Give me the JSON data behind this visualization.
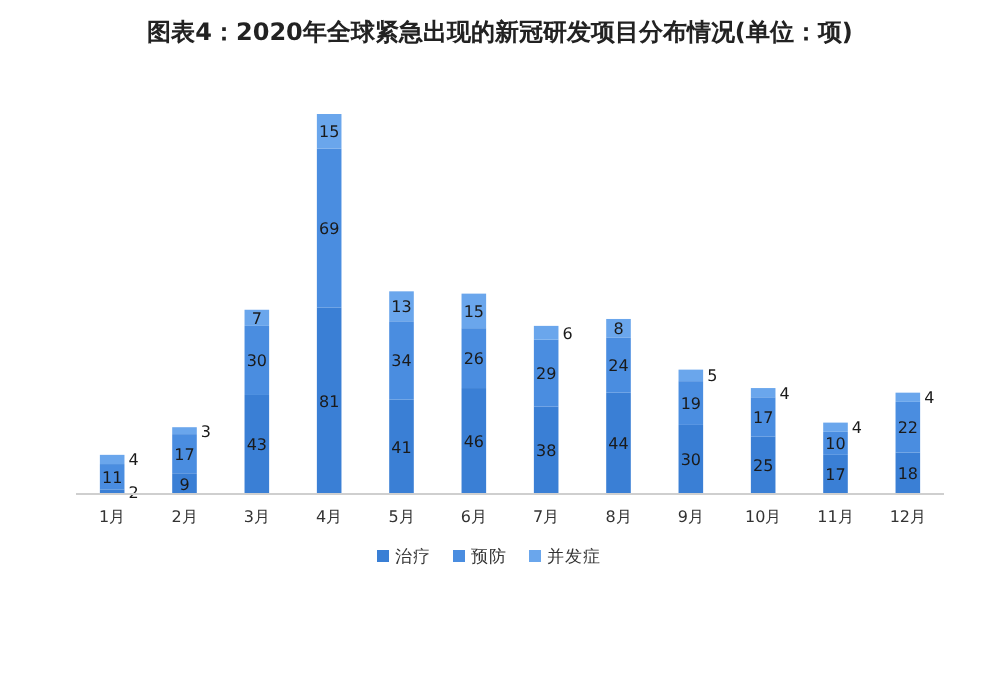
{
  "chart_data": {
    "type": "bar",
    "stacked": true,
    "title": "图表4：2020年全球紧急出现的新冠研发项目分布情况(单位：项)",
    "categories": [
      "1月",
      "2月",
      "3月",
      "4月",
      "5月",
      "6月",
      "7月",
      "8月",
      "9月",
      "10月",
      "11月",
      "12月"
    ],
    "series": [
      {
        "name": "治疗",
        "color": "#3a7fd5",
        "values": [
          2,
          9,
          43,
          81,
          41,
          46,
          38,
          44,
          30,
          25,
          17,
          18
        ]
      },
      {
        "name": "预防",
        "color": "#4a8de0",
        "values": [
          11,
          17,
          30,
          69,
          34,
          26,
          29,
          24,
          19,
          17,
          10,
          22
        ]
      },
      {
        "name": "并发症",
        "color": "#6aa6ec",
        "values": [
          4,
          3,
          7,
          15,
          13,
          15,
          6,
          8,
          5,
          4,
          4,
          4
        ]
      }
    ],
    "data_labels": true,
    "legend": "bottom"
  }
}
